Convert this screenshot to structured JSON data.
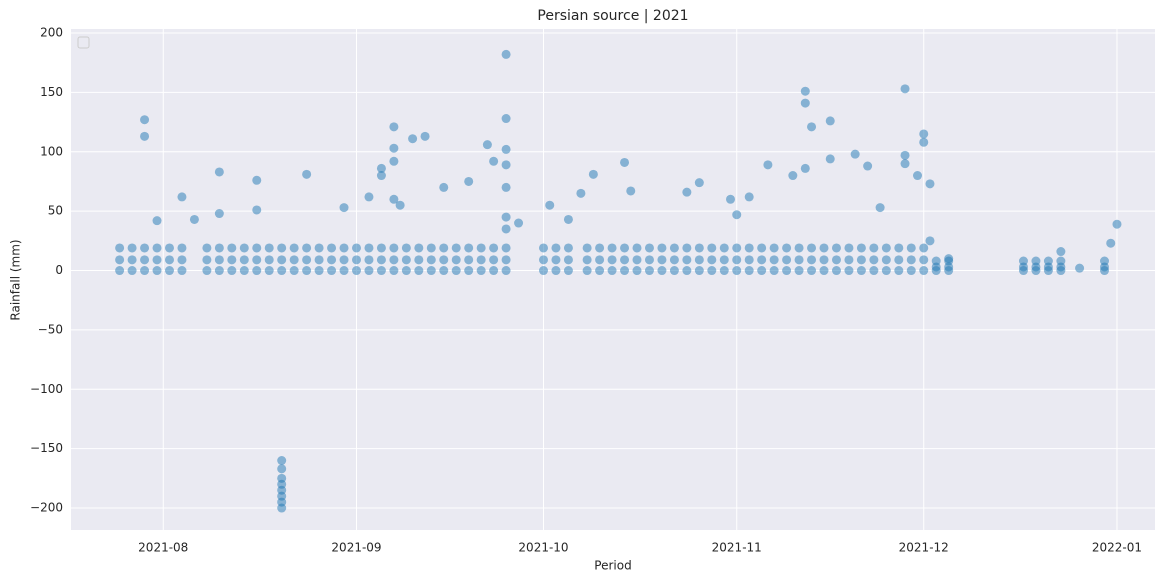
{
  "chart_data": {
    "type": "scatter",
    "title": "Persian source | 2021",
    "x_label": "Period",
    "y_label": "Rainfall (mm)",
    "color": "#1f77b4",
    "grid": true,
    "legend": "upper left",
    "xlim": [
      18825.2,
      18999.1
    ],
    "xticks": [
      {
        "value": 18840,
        "label": "2021-08"
      },
      {
        "value": 18871,
        "label": "2021-09"
      },
      {
        "value": 18901,
        "label": "2021-10"
      },
      {
        "value": 18932,
        "label": "2021-11"
      },
      {
        "value": 18962,
        "label": "2021-12"
      },
      {
        "value": 18993,
        "label": "2022-01"
      }
    ],
    "ylim": [
      -218.5,
      203.4
    ],
    "yticks": [
      {
        "value": -200,
        "label": "−200"
      },
      {
        "value": -150,
        "label": "−150"
      },
      {
        "value": -100,
        "label": "−100"
      },
      {
        "value": -50,
        "label": "−50"
      },
      0,
      50,
      100,
      150,
      200
    ],
    "x": [
      18833,
      18833,
      18833,
      18835,
      18835,
      18835,
      18837,
      18837,
      18837,
      18839,
      18839,
      18839,
      18841,
      18841,
      18841,
      18843,
      18843,
      18843,
      18847,
      18847,
      18847,
      18849,
      18849,
      18849,
      18851,
      18851,
      18851,
      18853,
      18853,
      18853,
      18855,
      18855,
      18855,
      18857,
      18857,
      18857,
      18859,
      18859,
      18859,
      18861,
      18861,
      18861,
      18863,
      18863,
      18863,
      18865,
      18865,
      18865,
      18867,
      18867,
      18867,
      18869,
      18869,
      18869,
      18871,
      18871,
      18871,
      18873,
      18873,
      18873,
      18875,
      18875,
      18875,
      18877,
      18877,
      18877,
      18879,
      18879,
      18879,
      18881,
      18881,
      18881,
      18883,
      18883,
      18883,
      18885,
      18885,
      18885,
      18887,
      18887,
      18887,
      18889,
      18889,
      18889,
      18891,
      18891,
      18891,
      18893,
      18893,
      18893,
      18895,
      18895,
      18895,
      18901,
      18901,
      18901,
      18903,
      18903,
      18903,
      18905,
      18905,
      18905,
      18908,
      18908,
      18908,
      18910,
      18910,
      18910,
      18912,
      18912,
      18912,
      18914,
      18914,
      18914,
      18916,
      18916,
      18916,
      18918,
      18918,
      18918,
      18920,
      18920,
      18920,
      18922,
      18922,
      18922,
      18924,
      18924,
      18924,
      18926,
      18926,
      18926,
      18928,
      18928,
      18928,
      18930,
      18930,
      18930,
      18932,
      18932,
      18932,
      18934,
      18934,
      18934,
      18936,
      18936,
      18936,
      18938,
      18938,
      18938,
      18940,
      18940,
      18940,
      18942,
      18942,
      18942,
      18944,
      18944,
      18944,
      18946,
      18946,
      18946,
      18948,
      18948,
      18948,
      18950,
      18950,
      18950,
      18952,
      18952,
      18952,
      18954,
      18954,
      18954,
      18956,
      18956,
      18956,
      18958,
      18958,
      18958,
      18960,
      18960,
      18960,
      18962,
      18962,
      18962,
      18964,
      18964,
      18964,
      18966,
      18966,
      18966,
      18978,
      18978,
      18978,
      18980,
      18980,
      18980,
      18982,
      18982,
      18982,
      18984,
      18984,
      18984,
      18991,
      18991,
      18991,
      18837,
      18837,
      18839,
      18843,
      18845,
      18849,
      18849,
      18855,
      18855,
      18859,
      18859,
      18859,
      18859,
      18859,
      18859,
      18859,
      18859,
      18863,
      18869,
      18873,
      18875,
      18875,
      18877,
      18877,
      18877,
      18877,
      18878,
      18880,
      18882,
      18885,
      18889,
      18892,
      18893,
      18895,
      18895,
      18895,
      18895,
      18895,
      18895,
      18895,
      18897,
      18902,
      18905,
      18907,
      18909,
      18914,
      18915,
      18924,
      18926,
      18931,
      18932,
      18934,
      18937,
      18941,
      18943,
      18943,
      18943,
      18944,
      18947,
      18947,
      18951,
      18953,
      18955,
      18959,
      18959,
      18959,
      18961,
      18962,
      18962,
      18963,
      18963,
      18966,
      18984,
      18993,
      18992,
      18987
    ],
    "values": [
      0,
      9,
      19,
      0,
      9,
      19,
      0,
      9,
      19,
      0,
      9,
      19,
      0,
      9,
      19,
      0,
      9,
      19,
      0,
      9,
      19,
      0,
      9,
      19,
      0,
      9,
      19,
      0,
      9,
      19,
      0,
      9,
      19,
      0,
      9,
      19,
      0,
      9,
      19,
      0,
      9,
      19,
      0,
      9,
      19,
      0,
      9,
      19,
      0,
      9,
      19,
      0,
      9,
      19,
      0,
      9,
      19,
      0,
      9,
      19,
      0,
      9,
      19,
      0,
      9,
      19,
      0,
      9,
      19,
      0,
      9,
      19,
      0,
      9,
      19,
      0,
      9,
      19,
      0,
      9,
      19,
      0,
      9,
      19,
      0,
      9,
      19,
      0,
      9,
      19,
      0,
      9,
      19,
      0,
      9,
      19,
      0,
      9,
      19,
      0,
      9,
      19,
      0,
      9,
      19,
      0,
      9,
      19,
      0,
      9,
      19,
      0,
      9,
      19,
      0,
      9,
      19,
      0,
      9,
      19,
      0,
      9,
      19,
      0,
      9,
      19,
      0,
      9,
      19,
      0,
      9,
      19,
      0,
      9,
      19,
      0,
      9,
      19,
      0,
      9,
      19,
      0,
      9,
      19,
      0,
      9,
      19,
      0,
      9,
      19,
      0,
      9,
      19,
      0,
      9,
      19,
      0,
      9,
      19,
      0,
      9,
      19,
      0,
      9,
      19,
      0,
      9,
      19,
      0,
      9,
      19,
      0,
      9,
      19,
      0,
      9,
      19,
      0,
      9,
      19,
      0,
      9,
      19,
      0,
      9,
      19,
      0,
      3,
      8,
      0,
      3,
      8,
      0,
      3,
      8,
      0,
      3,
      8,
      0,
      3,
      8,
      0,
      3,
      8,
      0,
      3,
      8,
      127,
      113,
      42,
      62,
      43,
      83,
      48,
      76,
      51,
      -200,
      -195,
      -190,
      -185,
      -180,
      -175,
      -167,
      -160,
      81,
      53,
      62,
      86,
      80,
      121,
      103,
      92,
      60,
      55,
      111,
      113,
      70,
      75,
      106,
      92,
      182,
      128,
      102,
      89,
      70,
      45,
      35,
      40,
      55,
      43,
      65,
      81,
      91,
      67,
      66,
      74,
      60,
      47,
      62,
      89,
      80,
      151,
      141,
      86,
      121,
      126,
      94,
      98,
      88,
      53,
      153,
      97,
      90,
      80,
      115,
      108,
      73,
      25,
      10,
      16,
      39,
      23,
      2
    ]
  }
}
